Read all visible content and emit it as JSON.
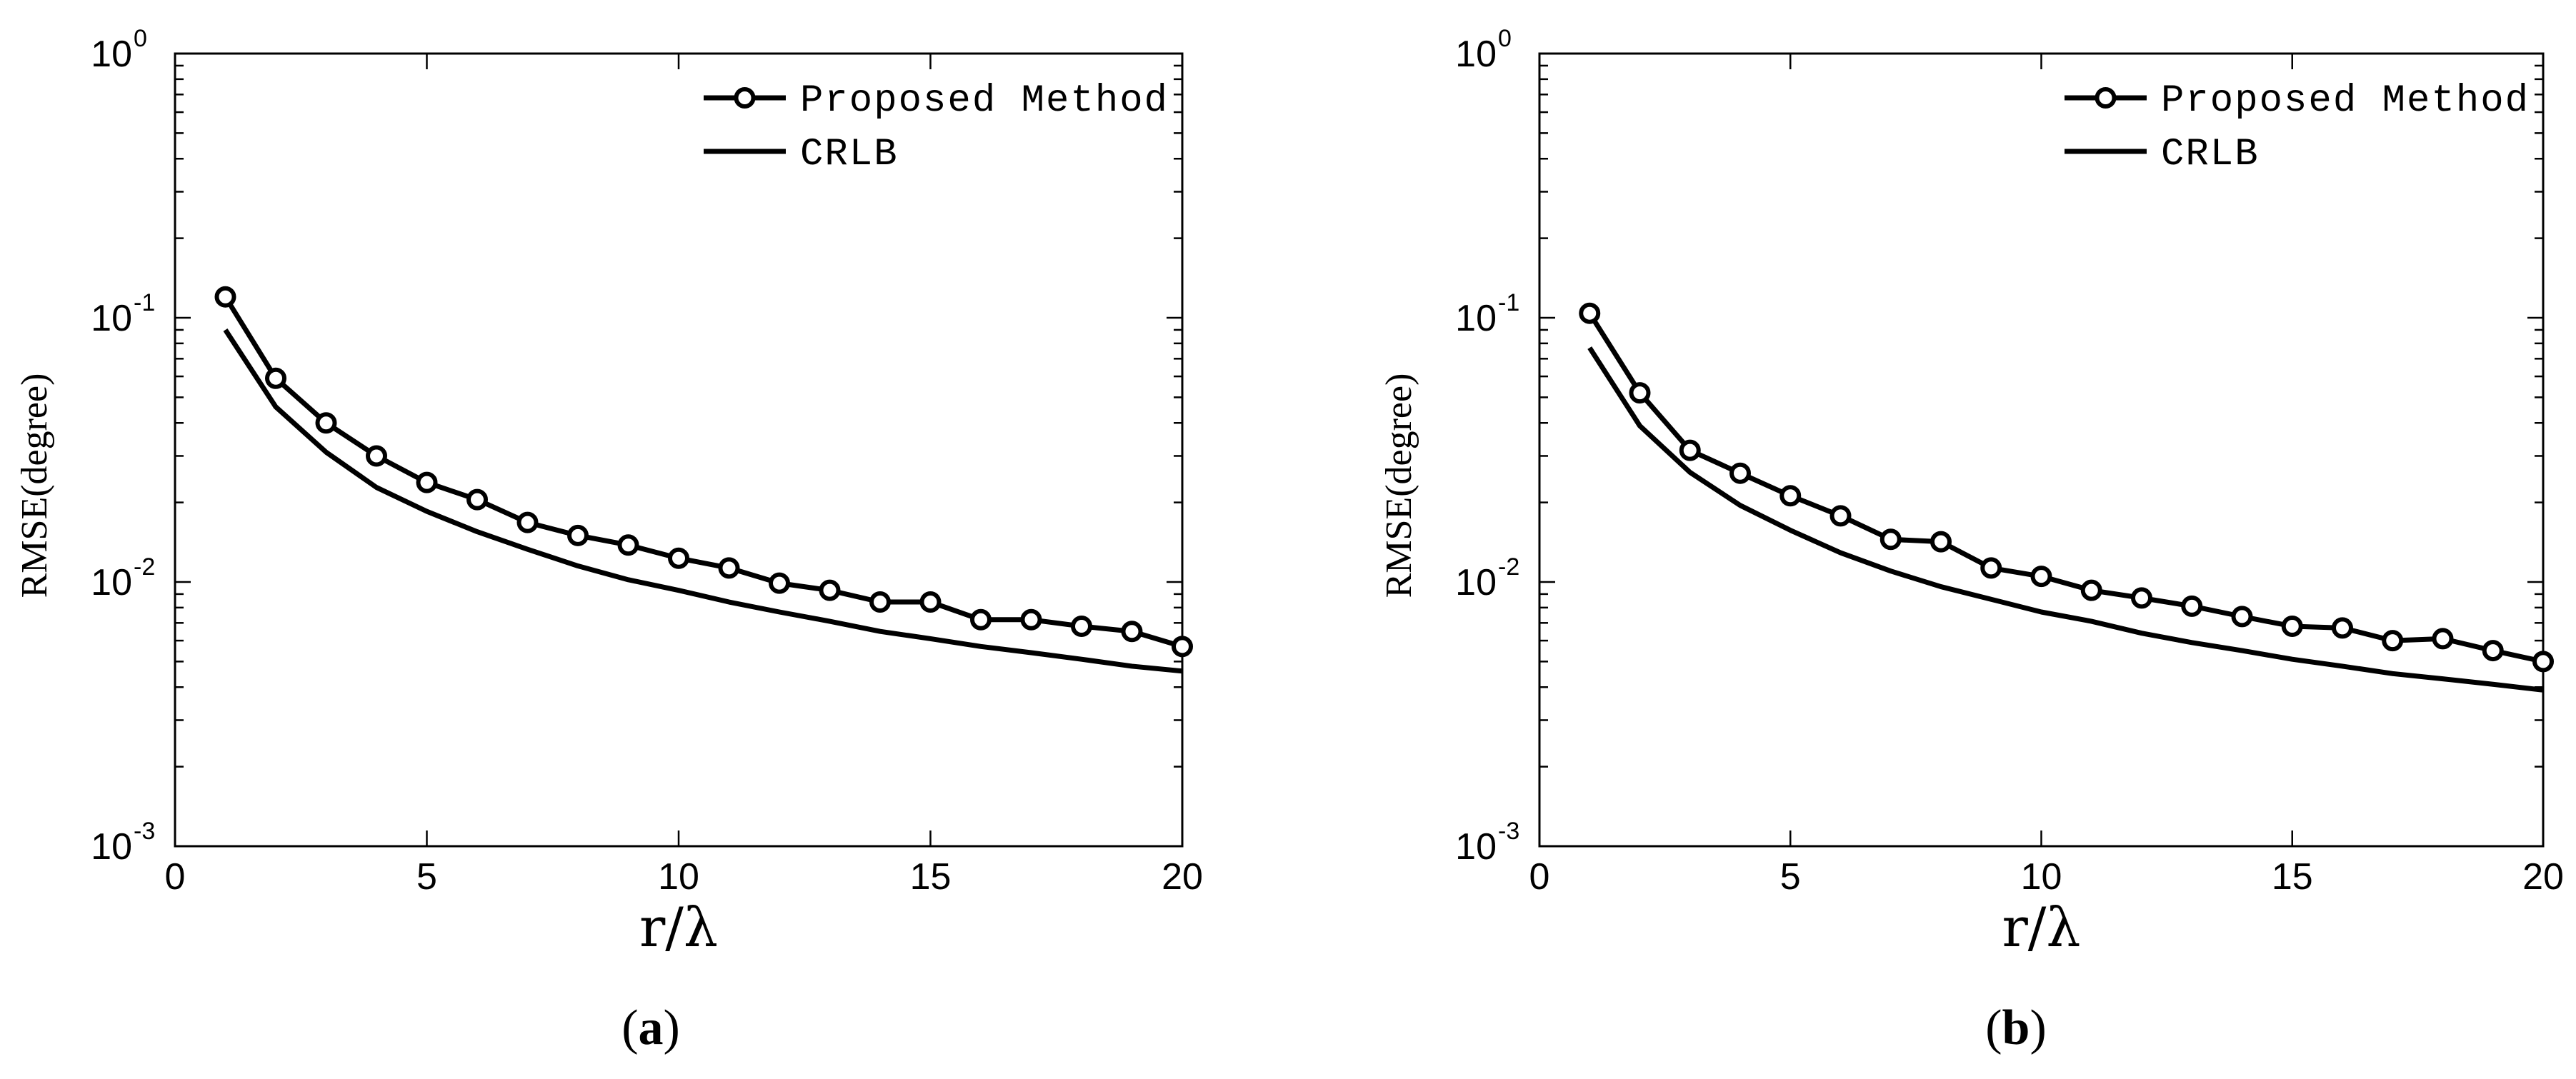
{
  "chart_data": [
    {
      "type": "line",
      "panel": "a",
      "caption": {
        "open": "(",
        "letter": "a",
        "close": ")"
      },
      "title": "",
      "xlabel": "r/λ",
      "ylabel": "RMSE(degree)",
      "yscale": "log",
      "xlim": [
        0,
        20
      ],
      "ylim": [
        0.001,
        1
      ],
      "xticks": [
        "0",
        "5",
        "10",
        "15",
        "20"
      ],
      "xtick_values": [
        0,
        5,
        10,
        15,
        20
      ],
      "yticks": [
        {
          "value": 0.001,
          "base": "10",
          "exp": "-3"
        },
        {
          "value": 0.01,
          "base": "10",
          "exp": "-2"
        },
        {
          "value": 0.1,
          "base": "10",
          "exp": "-1"
        },
        {
          "value": 1,
          "base": "10",
          "exp": "0"
        }
      ],
      "grid": false,
      "legend": "top-right",
      "x": [
        1,
        2,
        3,
        4,
        5,
        6,
        7,
        8,
        9,
        10,
        11,
        12,
        13,
        14,
        15,
        16,
        17,
        18,
        19,
        20
      ],
      "series": [
        {
          "name": "Proposed Method",
          "marker": "circle",
          "values": [
            0.12,
            0.059,
            0.04,
            0.03,
            0.0238,
            0.0205,
            0.0168,
            0.015,
            0.0138,
            0.0123,
            0.0113,
            0.0099,
            0.0093,
            0.0084,
            0.0084,
            0.0072,
            0.0072,
            0.0068,
            0.0065,
            0.0057
          ]
        },
        {
          "name": "CRLB",
          "marker": "none",
          "values": [
            0.09,
            0.046,
            0.031,
            0.0228,
            0.0185,
            0.0155,
            0.0133,
            0.0115,
            0.0102,
            0.0093,
            0.0084,
            0.0077,
            0.0071,
            0.0065,
            0.0061,
            0.0057,
            0.0054,
            0.0051,
            0.0048,
            0.0046
          ]
        }
      ]
    },
    {
      "type": "line",
      "panel": "b",
      "caption": {
        "open": "(",
        "letter": "b",
        "close": ")"
      },
      "title": "",
      "xlabel": "r/λ",
      "ylabel": "RMSE(degree)",
      "yscale": "log",
      "xlim": [
        0,
        20
      ],
      "ylim": [
        0.001,
        1
      ],
      "xticks": [
        "0",
        "5",
        "10",
        "15",
        "20"
      ],
      "xtick_values": [
        0,
        5,
        10,
        15,
        20
      ],
      "yticks": [
        {
          "value": 0.001,
          "base": "10",
          "exp": "-3"
        },
        {
          "value": 0.01,
          "base": "10",
          "exp": "-2"
        },
        {
          "value": 0.1,
          "base": "10",
          "exp": "-1"
        },
        {
          "value": 1,
          "base": "10",
          "exp": "0"
        }
      ],
      "grid": false,
      "legend": "top-right",
      "x": [
        1,
        2,
        3,
        4,
        5,
        6,
        7,
        8,
        9,
        10,
        11,
        12,
        13,
        14,
        15,
        16,
        17,
        18,
        19,
        20
      ],
      "series": [
        {
          "name": "Proposed Method",
          "marker": "circle",
          "values": [
            0.104,
            0.052,
            0.0315,
            0.0258,
            0.0212,
            0.0178,
            0.0145,
            0.0142,
            0.0113,
            0.0105,
            0.0093,
            0.0087,
            0.0081,
            0.0074,
            0.0068,
            0.0067,
            0.006,
            0.0061,
            0.0055,
            0.005
          ]
        },
        {
          "name": "CRLB",
          "marker": "none",
          "values": [
            0.077,
            0.039,
            0.026,
            0.0195,
            0.0157,
            0.0129,
            0.011,
            0.0096,
            0.0086,
            0.0077,
            0.0071,
            0.0064,
            0.0059,
            0.0055,
            0.0051,
            0.0048,
            0.0045,
            0.0043,
            0.0041,
            0.0039
          ]
        }
      ]
    }
  ]
}
